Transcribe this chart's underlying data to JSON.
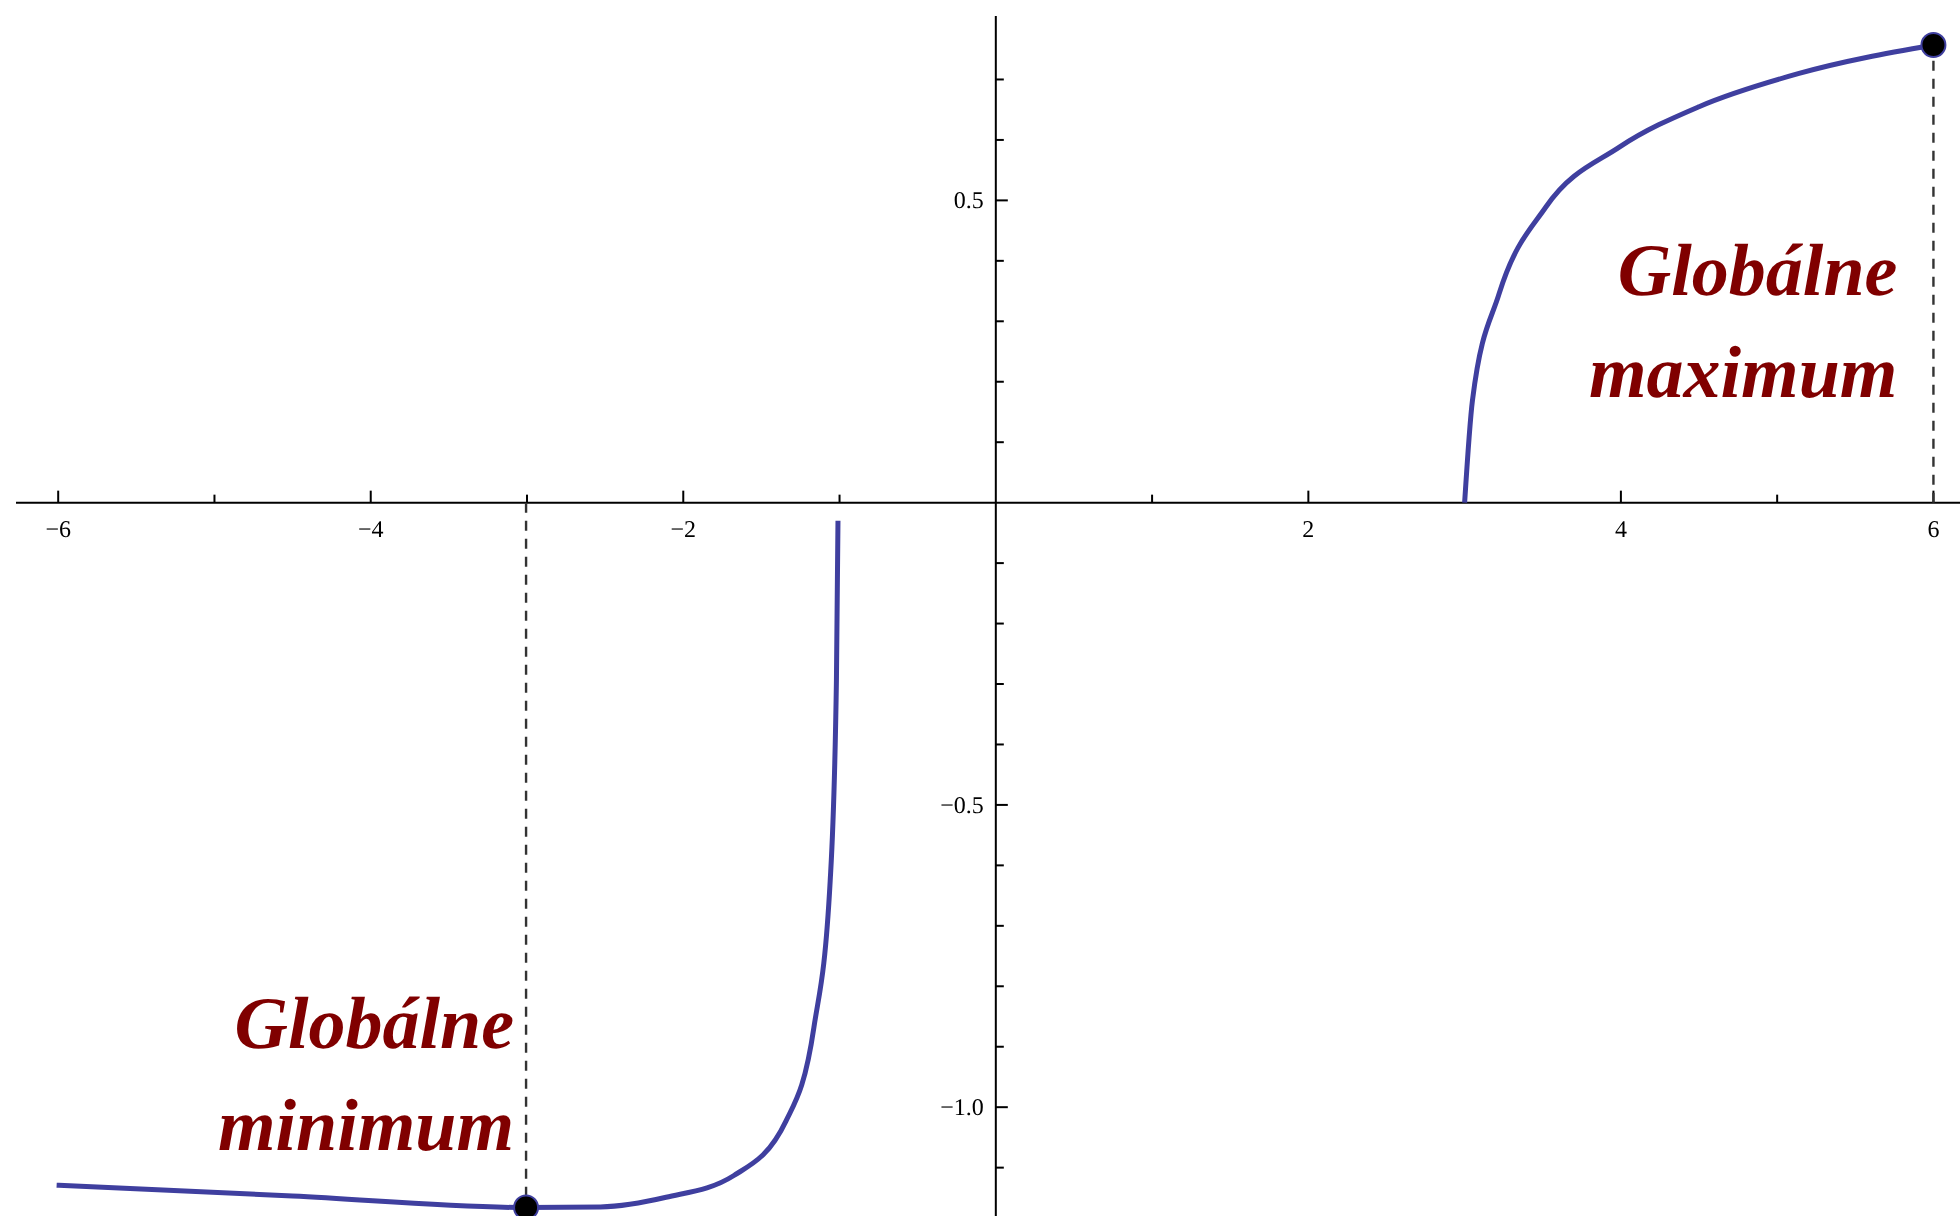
{
  "chart_data": {
    "type": "line",
    "xlim": [
      -6.27,
      6.17
    ],
    "ylim": [
      -1.18,
      0.805
    ],
    "xticks": [
      {
        "value": -6,
        "label": "−6"
      },
      {
        "value": -5,
        "label": null
      },
      {
        "value": -4,
        "label": "−4"
      },
      {
        "value": -3,
        "label": null
      },
      {
        "value": -2,
        "label": "−2"
      },
      {
        "value": -1,
        "label": null
      },
      {
        "value": 1,
        "label": null
      },
      2,
      {
        "value": 3,
        "label": null
      },
      4,
      {
        "value": 5,
        "label": null
      },
      6
    ],
    "yticks": [
      {
        "value": -1.1,
        "label": null
      },
      {
        "value": -1,
        "label": "−1.0"
      },
      {
        "value": -0.9,
        "label": null
      },
      {
        "value": -0.8,
        "label": null
      },
      {
        "value": -0.7,
        "label": null
      },
      {
        "value": -0.6,
        "label": null
      },
      {
        "value": -0.5,
        "label": "−0.5"
      },
      {
        "value": -0.4,
        "label": null
      },
      {
        "value": -0.3,
        "label": null
      },
      {
        "value": -0.2,
        "label": null
      },
      {
        "value": -0.1,
        "label": null
      },
      {
        "value": 0.1,
        "label": null
      },
      {
        "value": 0.2,
        "label": null
      },
      {
        "value": 0.3,
        "label": null
      },
      {
        "value": 0.4,
        "label": null
      },
      {
        "value": 0.5,
        "label": "0.5"
      },
      {
        "value": 0.6,
        "label": null
      },
      {
        "value": 0.7,
        "label": null
      }
    ],
    "series": [
      {
        "color": "#3f3f9f",
        "x": [
          -6.01,
          -4.5,
          -3.006,
          -2.53,
          -2.11,
          -1.676,
          -1.343,
          -1.164,
          -1.06,
          -1.02,
          -1.01
        ],
        "values": [
          -1.129,
          -1.147,
          -1.166,
          -1.165,
          -1.149,
          -1.113,
          -1.023,
          -0.868,
          -0.626,
          -0.295,
          -0.03
        ]
      },
      {
        "color": "#3f3f9f",
        "x": [
          3.0,
          3.05,
          3.22,
          3.52,
          3.99,
          4.5,
          5.14,
          6.0
        ],
        "values": [
          0,
          0.169,
          0.345,
          0.489,
          0.588,
          0.655,
          0.71,
          0.757
        ]
      },
      {
        "type": "scatter",
        "color": "#000000",
        "marker": "circle",
        "x": [
          -3.006,
          6.0
        ],
        "values": [
          -1.166,
          0.757
        ]
      }
    ],
    "ref_lines": [
      {
        "axis": "x",
        "value": -3.006,
        "line_style": "dashed",
        "color": "#333333"
      },
      {
        "axis": "x",
        "value": 6.0,
        "line_style": "dashed",
        "color": "#333333"
      }
    ],
    "annotations": [
      {
        "text": "Globálne minimum",
        "x": -3.006,
        "y": -1.166
      },
      {
        "text": "Globálne maximum",
        "x": 6.0,
        "y": 0.757
      }
    ],
    "grid": false
  }
}
